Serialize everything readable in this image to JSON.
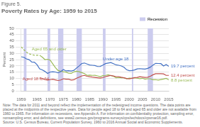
{
  "chart_data": {
    "type": "line",
    "title": "Figure 5.",
    "subtitle": "Poverty Rates by Age: 1959 to 2015",
    "y_label": "Percent",
    "x": [
      1959,
      1960,
      1961,
      1962,
      1963,
      1964,
      1965,
      1966,
      1967,
      1968,
      1969,
      1970,
      1971,
      1972,
      1973,
      1974,
      1975,
      1976,
      1977,
      1978,
      1979,
      1980,
      1981,
      1982,
      1983,
      1984,
      1985,
      1986,
      1987,
      1988,
      1989,
      1990,
      1991,
      1992,
      1993,
      1994,
      1995,
      1996,
      1997,
      1998,
      1999,
      2000,
      2001,
      2002,
      2003,
      2004,
      2005,
      2006,
      2007,
      2008,
      2009,
      2010,
      2011,
      2012,
      2013,
      2014,
      2015
    ],
    "xlim": [
      1959,
      2015
    ],
    "ylim": [
      0,
      50
    ],
    "xticks": [
      1959,
      1965,
      1970,
      1975,
      1980,
      1985,
      1990,
      1995,
      2000,
      2005,
      2010,
      2015
    ],
    "yticks": [
      0,
      5,
      10,
      15,
      20,
      25,
      30,
      35,
      40,
      45,
      50
    ],
    "grid": "y",
    "legend": "upper right",
    "bands": {
      "name": "Recession",
      "color": "#CCCCEE",
      "ranges": [
        [
          1960,
          1961
        ],
        [
          1969,
          1970
        ],
        [
          1973,
          1975
        ],
        [
          1980,
          1982
        ],
        [
          1990,
          1991
        ],
        [
          2001,
          2001.5
        ],
        [
          2007,
          2009
        ]
      ]
    },
    "series": [
      {
        "name": "Under age 18",
        "color": "#4472C4",
        "label": {
          "x": 1990,
          "y": 23.5
        },
        "end_label": "19.7 percent",
        "values": [
          27.3,
          26.9,
          25.6,
          25.0,
          23.1,
          23.0,
          21.0,
          17.6,
          16.8,
          15.6,
          14.0,
          15.1,
          15.3,
          15.1,
          14.4,
          15.4,
          17.1,
          16.0,
          16.2,
          15.9,
          16.4,
          18.3,
          20.0,
          21.9,
          22.3,
          21.5,
          20.7,
          20.5,
          20.3,
          19.5,
          19.6,
          20.6,
          21.8,
          22.3,
          22.7,
          21.8,
          20.8,
          20.5,
          19.9,
          18.9,
          16.9,
          16.2,
          16.3,
          16.7,
          17.6,
          17.8,
          17.6,
          17.4,
          18.0,
          19.0,
          20.7,
          22.0,
          21.9,
          21.8,
          19.9,
          21.1,
          19.7
        ]
      },
      {
        "name": "Aged 18 to 64",
        "color": "#C0504D",
        "label": {
          "x": 1959.5,
          "y": 8.0
        },
        "end_label": "12.4 percent",
        "values": [
          null,
          null,
          null,
          null,
          null,
          null,
          null,
          10.5,
          10.0,
          9.0,
          8.7,
          9.0,
          9.3,
          8.8,
          8.3,
          8.7,
          9.7,
          9.4,
          9.3,
          8.7,
          8.9,
          10.1,
          11.0,
          12.0,
          12.4,
          11.7,
          11.3,
          11.0,
          10.8,
          10.5,
          10.2,
          10.7,
          11.4,
          11.9,
          12.4,
          11.9,
          11.4,
          11.4,
          10.9,
          10.5,
          9.9,
          9.6,
          10.1,
          10.6,
          10.8,
          11.3,
          11.1,
          10.8,
          10.9,
          11.7,
          12.9,
          13.7,
          13.7,
          13.7,
          13.6,
          12.4,
          12.4
        ]
      },
      {
        "name": "Aged 65 and older",
        "color": "#9BBB59",
        "label": {
          "x": 1963,
          "y": 31.5
        },
        "end_label": "8.8 percent",
        "dashed_until": 1966,
        "values": [
          35.2,
          33.0,
          31.0,
          29.7,
          29.0,
          28.5,
          28.5,
          28.5,
          27.0,
          25.0,
          25.3,
          24.6,
          21.6,
          18.6,
          16.3,
          15.7,
          15.3,
          15.0,
          14.1,
          14.0,
          15.2,
          15.7,
          15.3,
          14.6,
          13.8,
          12.4,
          12.6,
          12.4,
          12.5,
          12.0,
          11.4,
          12.2,
          12.4,
          12.9,
          12.2,
          11.7,
          10.5,
          10.8,
          10.5,
          10.5,
          9.7,
          10.2,
          10.1,
          10.4,
          10.2,
          9.8,
          10.1,
          9.4,
          9.7,
          9.7,
          8.9,
          9.0,
          8.7,
          9.1,
          9.5,
          10.0,
          8.8
        ]
      }
    ],
    "note": "Note: The data for 2011 and beyond reflect the implementation of the redesigned income questions. The data points are placed at the midpoints of the respective years. Data for people aged 18 to 64 and aged 65 and older are not available from 1960 to 1965. For information on recessions, see Appendix A. For information on confidentiality protection, sampling error, nonsampling error, and definitions, see www2.census.gov/programs-surveys/cps/techdocs/cpsmar16.pdf.",
    "source": "Source: U.S. Census Bureau, Current Population Survey, 1960 to 2016 Annual Social and Economic Supplements."
  }
}
